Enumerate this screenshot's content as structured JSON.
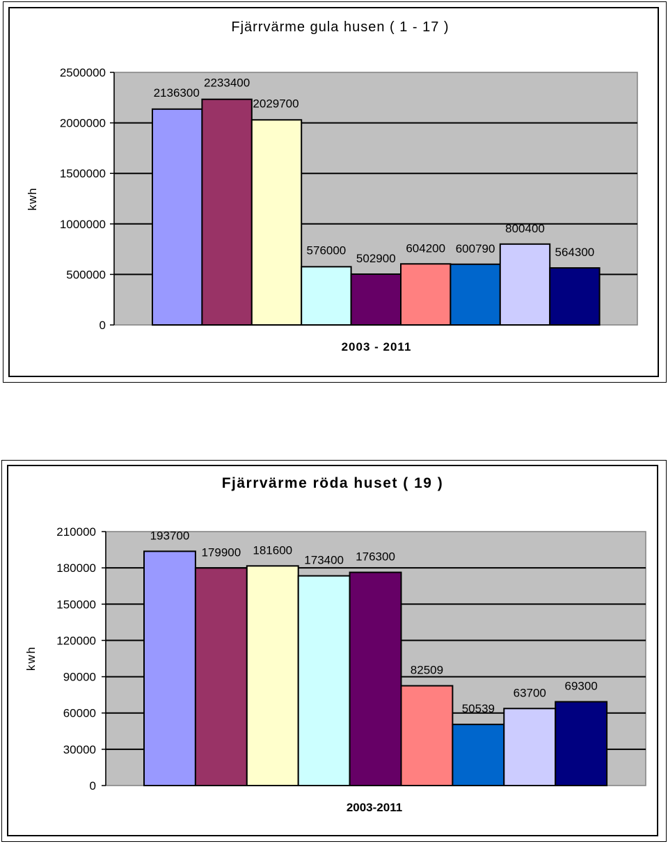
{
  "chart_data": [
    {
      "type": "bar",
      "title": "Fjärrvärme gula husen ( 1 - 17 )",
      "xlabel": "2003 - 2011",
      "ylabel": "kwh",
      "ylim": [
        0,
        2500000
      ],
      "yticks": [
        0,
        500000,
        1000000,
        1500000,
        2000000,
        2500000
      ],
      "ytick_labels": [
        "0",
        "500000",
        "1000000",
        "1500000",
        "2000000",
        "2500000"
      ],
      "grid": true,
      "plot_background": "#c0c0c0",
      "values": [
        2136300,
        2233400,
        2029700,
        576000,
        502900,
        604200,
        600790,
        800400,
        564300
      ],
      "data_labels": [
        "2136300",
        "2233400",
        "2029700",
        "576000",
        "502900",
        "604200",
        "600790",
        "800400",
        "564300"
      ],
      "colors": [
        "#9999ff",
        "#993366",
        "#ffffcc",
        "#ccffff",
        "#660066",
        "#ff8080",
        "#0066cc",
        "#ccccff",
        "#000080"
      ]
    },
    {
      "type": "bar",
      "title": "Fjärrvärme röda huset ( 19 )",
      "xlabel": "2003-2011",
      "ylabel": "kwh",
      "ylim": [
        0,
        210000
      ],
      "yticks": [
        0,
        30000,
        60000,
        90000,
        120000,
        150000,
        180000,
        210000
      ],
      "ytick_labels": [
        "0",
        "30000",
        "60000",
        "90000",
        "120000",
        "150000",
        "180000",
        "210000"
      ],
      "grid": true,
      "plot_background": "#c0c0c0",
      "values": [
        193700,
        179900,
        181600,
        173400,
        176300,
        82509,
        50539,
        63700,
        69300
      ],
      "data_labels": [
        "193700",
        "179900",
        "181600",
        "173400",
        "176300",
        "82509",
        "50539",
        "63700",
        "69300"
      ],
      "colors": [
        "#9999ff",
        "#993366",
        "#ffffcc",
        "#ccffff",
        "#660066",
        "#ff8080",
        "#0066cc",
        "#ccccff",
        "#000080"
      ]
    }
  ]
}
